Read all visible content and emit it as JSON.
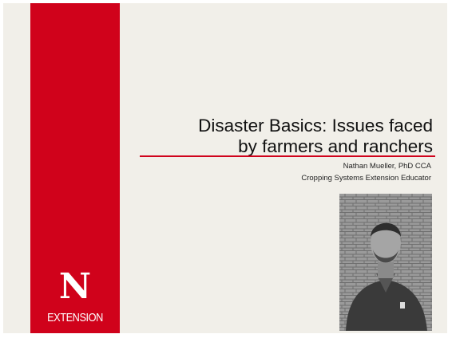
{
  "slide": {
    "title": [
      "Disaster Basics: Issues faced",
      "by farmers and ranchers"
    ],
    "author": "Nathan Mueller, PhD CCA",
    "role": "Cropping Systems Extension Educator",
    "logo": {
      "mark": "N",
      "text": "EXTENSION"
    }
  }
}
